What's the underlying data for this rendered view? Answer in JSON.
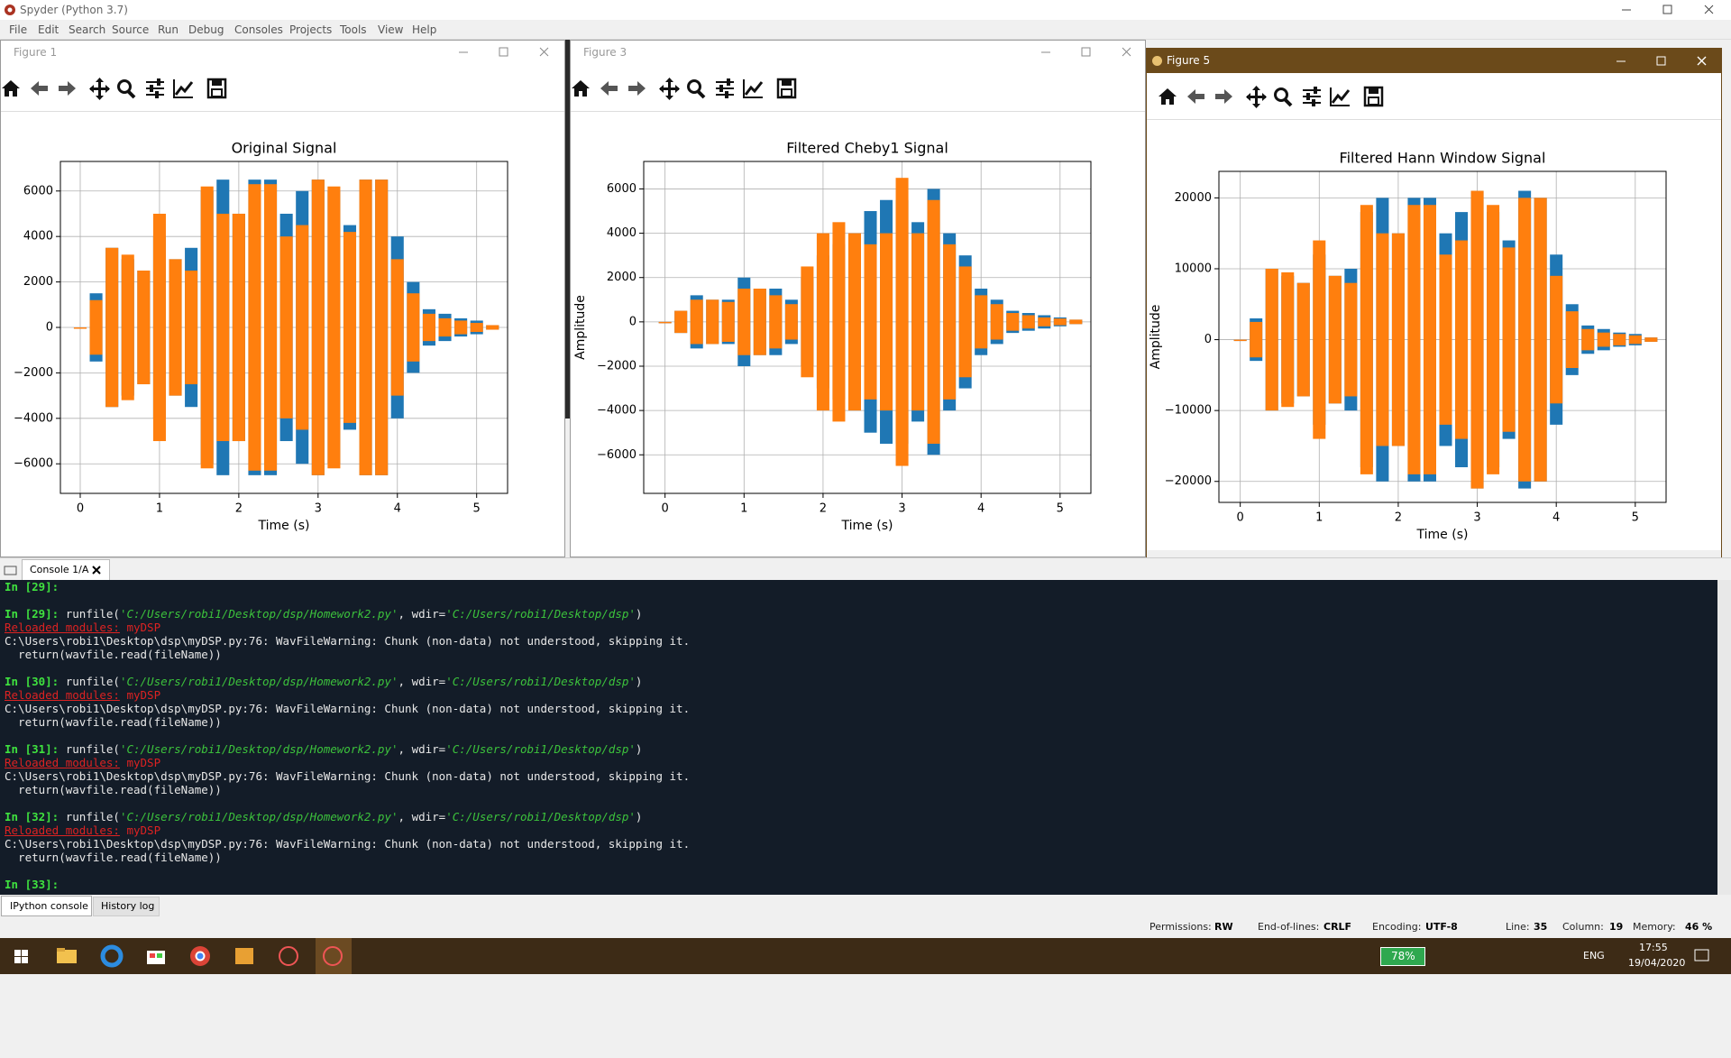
{
  "app_title": "Spyder (Python 3.7)",
  "menu": [
    "File",
    "Edit",
    "Search",
    "Source",
    "Run",
    "Debug",
    "Consoles",
    "Projects",
    "Tools",
    "View",
    "Help"
  ],
  "figure_windows": [
    "Figure 1",
    "Figure 3",
    "Figure 5"
  ],
  "chart_data": [
    {
      "type": "waveform",
      "title": "Original Signal",
      "xlabel": "Time (s)",
      "x": [
        0,
        0.2,
        0.4,
        0.6,
        0.8,
        1,
        1.2,
        1.4,
        1.6,
        1.8,
        2,
        2.2,
        2.4,
        2.6,
        2.8,
        3,
        3.2,
        3.4,
        3.6,
        3.8,
        4,
        4.2,
        4.4,
        4.6,
        4.8,
        5,
        5.2
      ],
      "series": [
        {
          "color": "#1f77b4",
          "values": [
            0,
            1500,
            3500,
            3000,
            2500,
            4000,
            3000,
            3500,
            6000,
            6500,
            5000,
            6500,
            6500,
            5000,
            6000,
            6500,
            6000,
            4500,
            6500,
            6500,
            4000,
            2000,
            800,
            600,
            400,
            300,
            100
          ]
        },
        {
          "color": "#ff7f0e",
          "values": [
            0,
            1200,
            3500,
            3200,
            2500,
            5000,
            3000,
            2500,
            6200,
            5000,
            5000,
            6300,
            6300,
            4000,
            4500,
            6500,
            6200,
            4200,
            6500,
            6500,
            3000,
            1500,
            600,
            400,
            300,
            200,
            100
          ]
        }
      ],
      "xlim": [
        -0.25,
        5.39
      ],
      "xticks": [
        0,
        1,
        2,
        3,
        4,
        5
      ],
      "ylim": [
        -7300,
        7300
      ],
      "yticks": [
        {
          "value": -6000,
          "label": "−6000"
        },
        {
          "value": -4000,
          "label": "−4000"
        },
        {
          "value": -2000,
          "label": "−2000"
        },
        0,
        2000,
        4000,
        6000
      ],
      "grid": true
    },
    {
      "type": "waveform",
      "title": "Filtered Cheby1 Signal",
      "xlabel": "Time (s)",
      "ylabel": "Amplitude",
      "x": [
        0,
        0.2,
        0.4,
        0.6,
        0.8,
        1,
        1.2,
        1.4,
        1.6,
        1.8,
        2,
        2.2,
        2.4,
        2.6,
        2.8,
        3,
        3.2,
        3.4,
        3.6,
        3.8,
        4,
        4.2,
        4.4,
        4.6,
        4.8,
        5,
        5.2
      ],
      "series": [
        {
          "color": "#1f77b4",
          "values": [
            0,
            500,
            1200,
            1000,
            1000,
            2000,
            1500,
            1500,
            1000,
            2000,
            3000,
            3500,
            4000,
            5000,
            5500,
            5500,
            4500,
            6000,
            4000,
            3000,
            1500,
            1000,
            500,
            400,
            300,
            200,
            100
          ]
        },
        {
          "color": "#ff7f0e",
          "values": [
            0,
            500,
            1000,
            1000,
            900,
            1500,
            1500,
            1200,
            800,
            2500,
            4000,
            4500,
            4000,
            3500,
            4000,
            6500,
            4000,
            5500,
            3500,
            2500,
            1200,
            800,
            400,
            300,
            200,
            150,
            100
          ]
        }
      ],
      "xlim": [
        -0.27,
        5.39
      ],
      "xticks": [
        0,
        1,
        2,
        3,
        4,
        5
      ],
      "ylim": [
        -7740,
        7240
      ],
      "yticks": [
        {
          "value": -6000,
          "label": "−6000"
        },
        {
          "value": -4000,
          "label": "−4000"
        },
        {
          "value": -2000,
          "label": "−2000"
        },
        0,
        2000,
        4000,
        6000
      ],
      "grid": true
    },
    {
      "type": "waveform",
      "title": "Filtered Hann Window Signal",
      "xlabel": "Time (s)",
      "ylabel": "Amplitude",
      "x": [
        0,
        0.2,
        0.4,
        0.6,
        0.8,
        1,
        1.2,
        1.4,
        1.6,
        1.8,
        2,
        2.2,
        2.4,
        2.6,
        2.8,
        3,
        3.2,
        3.4,
        3.6,
        3.8,
        4,
        4.2,
        4.4,
        4.6,
        4.8,
        5,
        5.2
      ],
      "series": [
        {
          "color": "#1f77b4",
          "values": [
            0,
            3000,
            10000,
            9000,
            8000,
            12000,
            9000,
            10000,
            18000,
            20000,
            15000,
            20000,
            20000,
            15000,
            18000,
            21000,
            18000,
            14000,
            21000,
            20000,
            12000,
            5000,
            2000,
            1500,
            1000,
            800,
            300
          ]
        },
        {
          "color": "#ff7f0e",
          "values": [
            0,
            2500,
            10000,
            9500,
            8000,
            14000,
            9000,
            8000,
            19000,
            15000,
            15000,
            19000,
            19000,
            12000,
            14000,
            21000,
            19000,
            13000,
            20000,
            20000,
            9000,
            4000,
            1500,
            1000,
            800,
            600,
            300
          ]
        }
      ],
      "xlim": [
        -0.27,
        5.39
      ],
      "xticks": [
        0,
        1,
        2,
        3,
        4,
        5
      ],
      "ylim": [
        -22960,
        23740
      ],
      "yticks": [
        {
          "value": -20000,
          "label": "−20000"
        },
        {
          "value": -10000,
          "label": "−10000"
        },
        0,
        10000,
        20000
      ],
      "grid": true
    }
  ],
  "console": {
    "tab": "Console 1/A",
    "lines": [
      [
        {
          "text": "In [29]:",
          "style": "prompt"
        }
      ],
      [],
      [
        {
          "text": "In [29]:",
          "style": "prompt"
        },
        {
          "text": " runfile(",
          "style": "plain"
        },
        {
          "text": "'C:/Users/robi1/Desktop/dsp/Homework2.py'",
          "style": "string"
        },
        {
          "text": ", wdir=",
          "style": "plain"
        },
        {
          "text": "'C:/Users/robi1/Desktop/dsp'",
          "style": "string"
        },
        {
          "text": ")",
          "style": "plain"
        }
      ],
      [
        {
          "text": "Reloaded modules:",
          "style": "error-link"
        },
        {
          "text": " myDSP",
          "style": "error"
        }
      ],
      [
        {
          "text": "C:\\Users\\robi1\\Desktop\\dsp\\myDSP.py:76: WavFileWarning: Chunk (non-data) not understood, skipping it.",
          "style": "plain"
        }
      ],
      [
        {
          "text": "  return(wavfile.read(fileName))",
          "style": "plain"
        }
      ],
      [],
      [
        {
          "text": "In [30]:",
          "style": "prompt"
        },
        {
          "text": " runfile(",
          "style": "plain"
        },
        {
          "text": "'C:/Users/robi1/Desktop/dsp/Homework2.py'",
          "style": "string"
        },
        {
          "text": ", wdir=",
          "style": "plain"
        },
        {
          "text": "'C:/Users/robi1/Desktop/dsp'",
          "style": "string"
        },
        {
          "text": ")",
          "style": "plain"
        }
      ],
      [
        {
          "text": "Reloaded modules:",
          "style": "error-link"
        },
        {
          "text": " myDSP",
          "style": "error"
        }
      ],
      [
        {
          "text": "C:\\Users\\robi1\\Desktop\\dsp\\myDSP.py:76: WavFileWarning: Chunk (non-data) not understood, skipping it.",
          "style": "plain"
        }
      ],
      [
        {
          "text": "  return(wavfile.read(fileName))",
          "style": "plain"
        }
      ],
      [],
      [
        {
          "text": "In [31]:",
          "style": "prompt"
        },
        {
          "text": " runfile(",
          "style": "plain"
        },
        {
          "text": "'C:/Users/robi1/Desktop/dsp/Homework2.py'",
          "style": "string"
        },
        {
          "text": ", wdir=",
          "style": "plain"
        },
        {
          "text": "'C:/Users/robi1/Desktop/dsp'",
          "style": "string"
        },
        {
          "text": ")",
          "style": "plain"
        }
      ],
      [
        {
          "text": "Reloaded modules:",
          "style": "error-link"
        },
        {
          "text": " myDSP",
          "style": "error"
        }
      ],
      [
        {
          "text": "C:\\Users\\robi1\\Desktop\\dsp\\myDSP.py:76: WavFileWarning: Chunk (non-data) not understood, skipping it.",
          "style": "plain"
        }
      ],
      [
        {
          "text": "  return(wavfile.read(fileName))",
          "style": "plain"
        }
      ],
      [],
      [
        {
          "text": "In [32]:",
          "style": "prompt"
        },
        {
          "text": " runfile(",
          "style": "plain"
        },
        {
          "text": "'C:/Users/robi1/Desktop/dsp/Homework2.py'",
          "style": "string"
        },
        {
          "text": ", wdir=",
          "style": "plain"
        },
        {
          "text": "'C:/Users/robi1/Desktop/dsp'",
          "style": "string"
        },
        {
          "text": ")",
          "style": "plain"
        }
      ],
      [
        {
          "text": "Reloaded modules:",
          "style": "error-link"
        },
        {
          "text": " myDSP",
          "style": "error"
        }
      ],
      [
        {
          "text": "C:\\Users\\robi1\\Desktop\\dsp\\myDSP.py:76: WavFileWarning: Chunk (non-data) not understood, skipping it.",
          "style": "plain"
        }
      ],
      [
        {
          "text": "  return(wavfile.read(fileName))",
          "style": "plain"
        }
      ],
      [],
      [
        {
          "text": "In [33]:",
          "style": "prompt"
        }
      ]
    ]
  },
  "bottom_tabs": [
    "IPython console",
    "History log"
  ],
  "status": [
    {
      "label": "Permissions:",
      "value": "RW"
    },
    {
      "label": "End-of-lines:",
      "value": "CRLF"
    },
    {
      "label": "Encoding:",
      "value": "UTF-8"
    },
    {
      "label": "Line:",
      "value": "35"
    },
    {
      "label": "Column:",
      "value": "19"
    },
    {
      "label": "Memory:",
      "value": "46 %"
    }
  ],
  "taskbar": {
    "battery": "78%",
    "language": "ENG",
    "time": "17:55",
    "date": "19/04/2020"
  }
}
